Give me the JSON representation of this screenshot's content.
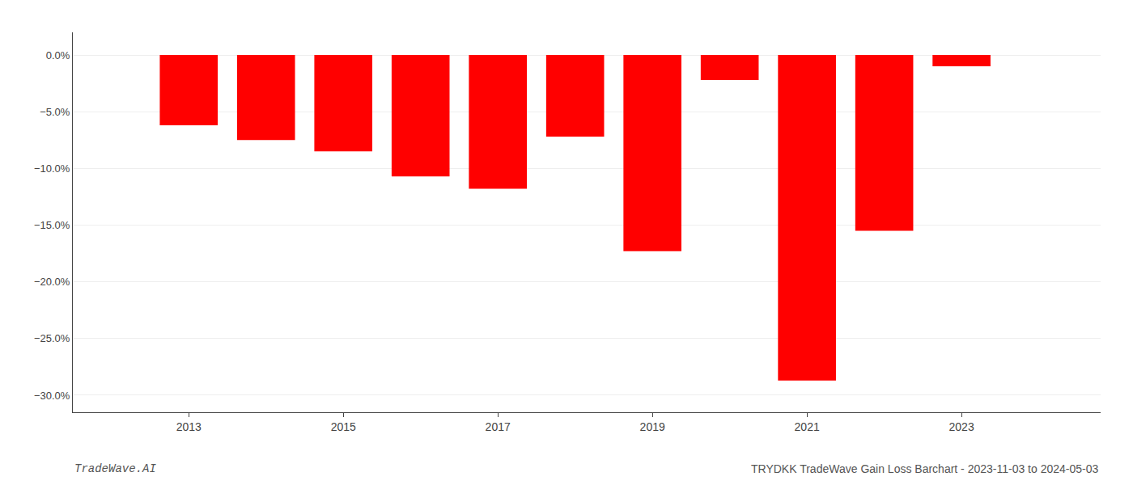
{
  "chart_data": {
    "type": "bar",
    "x": [
      2013,
      2014,
      2015,
      2016,
      2017,
      2018,
      2019,
      2020,
      2021,
      2022,
      2023
    ],
    "values": [
      -0.062,
      -0.075,
      -0.085,
      -0.107,
      -0.118,
      -0.072,
      -0.173,
      -0.022,
      -0.287,
      -0.155,
      -0.01
    ],
    "color": "#ff0000",
    "xlim": [
      2011.5,
      2024.8
    ],
    "xticks": [
      2013,
      2015,
      2017,
      2019,
      2021,
      2023
    ],
    "ylim": [
      -0.315,
      0.02
    ],
    "yticks": [
      {
        "value": 0.0,
        "label": "0.0%"
      },
      {
        "value": -0.05,
        "label": "−5.0%"
      },
      {
        "value": -0.1,
        "label": "−10.0%"
      },
      {
        "value": -0.15,
        "label": "−15.0%"
      },
      {
        "value": -0.2,
        "label": "−20.0%"
      },
      {
        "value": -0.25,
        "label": "−25.0%"
      },
      {
        "value": -0.3,
        "label": "−30.0%"
      }
    ],
    "grid": true,
    "annotations": [
      "TradeWave.AI",
      "TRYDKK TradeWave Gain Loss Barchart - 2023-11-03 to 2024-05-03"
    ]
  }
}
